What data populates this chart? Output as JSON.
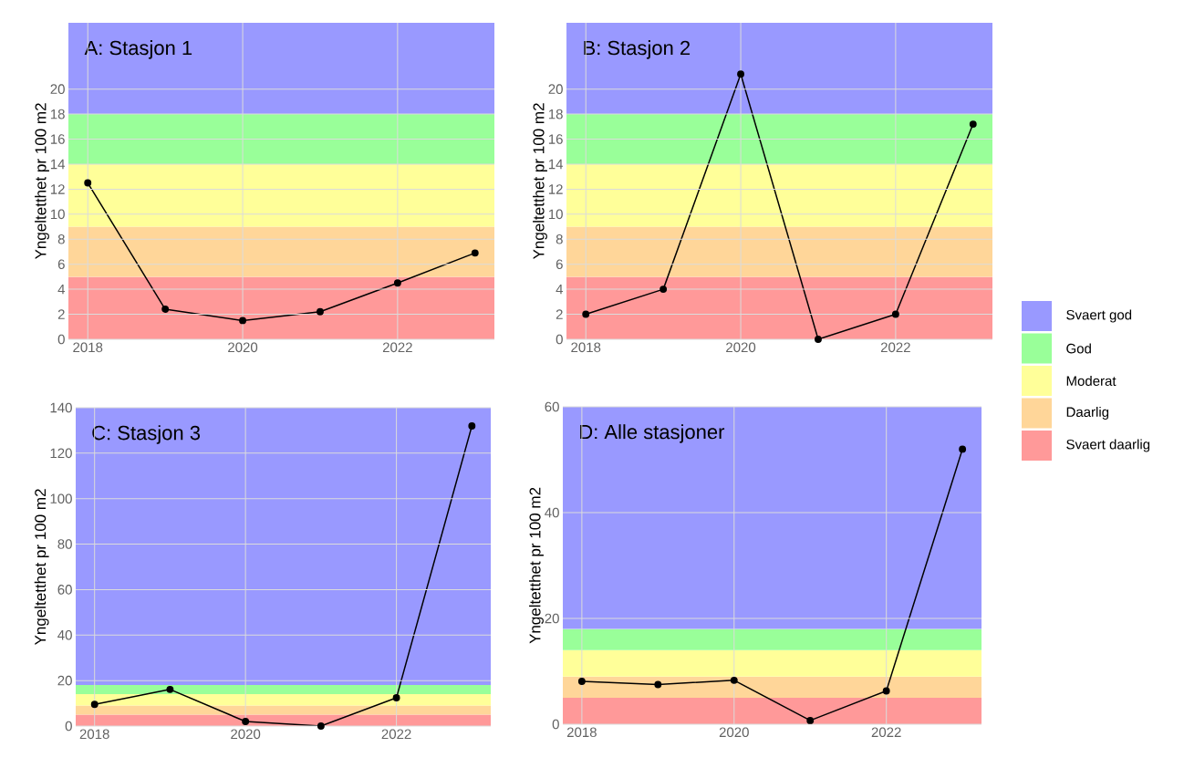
{
  "chart_data": [
    {
      "type": "line",
      "title": "A: Stasjon 1",
      "ylabel": "Yngeltetthet pr 100 m2",
      "x": [
        2018,
        2019,
        2020,
        2021,
        2022,
        2023
      ],
      "values": [
        12.5,
        2.4,
        1.5,
        2.2,
        4.5,
        6.9
      ],
      "color": "#000000",
      "marker": "circle",
      "grid": true,
      "xlim": [
        2017.75,
        2023.25
      ],
      "ylim": [
        0,
        25.3
      ],
      "xticks": [
        2018,
        2020,
        2022
      ],
      "yticks": [
        0,
        2,
        4,
        6,
        8,
        10,
        12,
        14,
        16,
        18,
        20
      ],
      "bands": [
        {
          "axis": "y",
          "from": 0,
          "to": 5,
          "color": "#ff9999"
        },
        {
          "axis": "y",
          "from": 5,
          "to": 9,
          "color": "#ffd699"
        },
        {
          "axis": "y",
          "from": 9,
          "to": 14,
          "color": "#ffff99"
        },
        {
          "axis": "y",
          "from": 14,
          "to": 18,
          "color": "#99ff99"
        },
        {
          "axis": "y",
          "from": 18,
          "to": 25.3,
          "color": "#9999ff"
        }
      ]
    },
    {
      "type": "line",
      "title": "B: Stasjon 2",
      "ylabel": "Yngeltetthet pr 100 m2",
      "x": [
        2018,
        2019,
        2020,
        2021,
        2022,
        2023
      ],
      "values": [
        2,
        4,
        21.2,
        0,
        2,
        17.2
      ],
      "color": "#000000",
      "marker": "circle",
      "grid": true,
      "legend": "right",
      "xlim": [
        2017.75,
        2023.25
      ],
      "ylim": [
        0,
        25.3
      ],
      "xticks": [
        2018,
        2020,
        2022
      ],
      "yticks": [
        0,
        2,
        4,
        6,
        8,
        10,
        12,
        14,
        16,
        18,
        20
      ],
      "bands": [
        {
          "axis": "y",
          "from": 0,
          "to": 5,
          "label": "Svaert daarlig",
          "color": "#ff9999"
        },
        {
          "axis": "y",
          "from": 5,
          "to": 9,
          "label": "Daarlig",
          "color": "#ffd699"
        },
        {
          "axis": "y",
          "from": 9,
          "to": 14,
          "label": "Moderat",
          "color": "#ffff99"
        },
        {
          "axis": "y",
          "from": 14,
          "to": 18,
          "label": "God",
          "color": "#99ff99"
        },
        {
          "axis": "y",
          "from": 18,
          "to": 25.3,
          "label": "Svaert god",
          "color": "#9999ff"
        }
      ]
    },
    {
      "type": "line",
      "title": "C: Stasjon 3",
      "ylabel": "Yngeltetthet pr 100 m2",
      "x": [
        2018,
        2019,
        2020,
        2021,
        2022,
        2023
      ],
      "values": [
        9.5,
        16.1,
        2,
        0,
        12.4,
        132
      ],
      "color": "#000000",
      "marker": "circle",
      "grid": true,
      "xlim": [
        2017.75,
        2023.25
      ],
      "ylim": [
        0,
        140
      ],
      "xticks": [
        2018,
        2020,
        2022
      ],
      "yticks": [
        0,
        20,
        40,
        60,
        80,
        100,
        120,
        140
      ],
      "bands": [
        {
          "axis": "y",
          "from": 0,
          "to": 5,
          "color": "#ff9999"
        },
        {
          "axis": "y",
          "from": 5,
          "to": 9,
          "color": "#ffd699"
        },
        {
          "axis": "y",
          "from": 9,
          "to": 14,
          "color": "#ffff99"
        },
        {
          "axis": "y",
          "from": 14,
          "to": 18,
          "color": "#99ff99"
        },
        {
          "axis": "y",
          "from": 18,
          "to": 140,
          "color": "#9999ff"
        }
      ]
    },
    {
      "type": "line",
      "title": "D: Alle stasjoner",
      "ylabel": "Yngeltetthet pr 100 m2",
      "x": [
        2018,
        2019,
        2020,
        2021,
        2022,
        2023
      ],
      "values": [
        8.1,
        7.5,
        8.3,
        0.7,
        6.3,
        52
      ],
      "color": "#000000",
      "marker": "circle",
      "grid": true,
      "xlim": [
        2017.75,
        2023.25
      ],
      "ylim": [
        0,
        60
      ],
      "xticks": [
        2018,
        2020,
        2022
      ],
      "yticks": [
        0,
        20,
        40,
        60
      ],
      "bands": [
        {
          "axis": "y",
          "from": 0,
          "to": 5,
          "color": "#ff9999"
        },
        {
          "axis": "y",
          "from": 5,
          "to": 9,
          "color": "#ffd699"
        },
        {
          "axis": "y",
          "from": 9,
          "to": 14,
          "color": "#ffff99"
        },
        {
          "axis": "y",
          "from": 14,
          "to": 18,
          "color": "#99ff99"
        },
        {
          "axis": "y",
          "from": 18,
          "to": 60,
          "color": "#9999ff"
        }
      ]
    }
  ]
}
